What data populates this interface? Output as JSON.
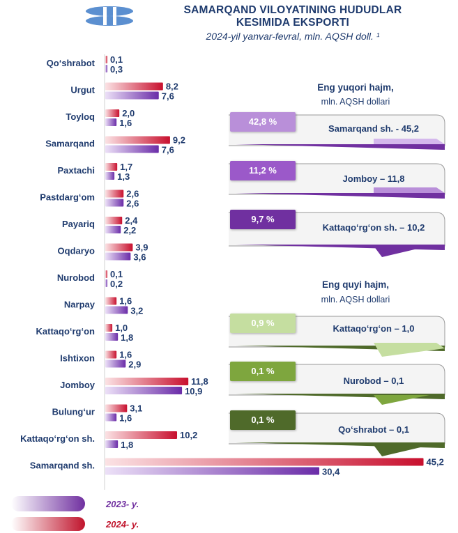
{
  "title_line1": "SAMARQAND VILOYATINING HUDUDLAR",
  "title_line2": "KESIMIDA EKSPORTI",
  "subtitle": "2024-yil yanvar-fevral, mln. AQSH doll. ¹",
  "chart_data": {
    "type": "bar",
    "orientation": "horizontal",
    "categories": [
      "Qo‘shrabot",
      "Urgut",
      "Toyloq",
      "Samarqand",
      "Paxtachi",
      "Pastdarg‘om",
      "Payariq",
      "Oqdaryo",
      "Nurobod",
      "Narpay",
      "Kattaqo‘rg‘on",
      "Ishtixon",
      "Jomboy",
      "Bulung‘ur",
      "Kattaqo‘rg‘on sh.",
      "Samarqand sh."
    ],
    "series": [
      {
        "name": "2024- y.",
        "color": "#d93c4a",
        "values": [
          0.1,
          8.2,
          2.0,
          9.2,
          1.7,
          2.6,
          2.4,
          3.9,
          0.1,
          1.6,
          1.0,
          1.6,
          11.8,
          3.1,
          10.2,
          45.2
        ],
        "labels": [
          "0,1",
          "8,2",
          "2,0",
          "9,2",
          "1,7",
          "2,6",
          "2,4",
          "3,9",
          "0,1",
          "1,6",
          "1,0",
          "1,6",
          "11,8",
          "3,1",
          "10,2",
          "45,2"
        ]
      },
      {
        "name": "2023- y.",
        "color": "#7030a0",
        "values": [
          0.3,
          7.6,
          1.6,
          7.6,
          1.3,
          2.6,
          2.2,
          3.6,
          0.2,
          3.2,
          1.8,
          2.9,
          10.9,
          1.6,
          1.8,
          30.4
        ],
        "labels": [
          "0,3",
          "7,6",
          "1,6",
          "7,6",
          "1,3",
          "2,6",
          "2,2",
          "3,6",
          "0,2",
          "3,2",
          "1,8",
          "2,9",
          "10,9",
          "1,6",
          "1,8",
          "30,4"
        ]
      }
    ],
    "legend": [
      {
        "label": "2023- y.",
        "color": "#7030a0"
      },
      {
        "label": "2024- y.",
        "color": "#c0142c"
      }
    ],
    "legend_position": "bottom-left"
  },
  "top_section": {
    "heading": "Eng yuqori hajm,",
    "unit": "mln. AQSH dollari",
    "cards": [
      {
        "pct": "42,8 %",
        "name": "Samarqand sh. - 45,2",
        "color": "#b98fd9"
      },
      {
        "pct": "11,2 %",
        "name": "Jomboy – 11,8",
        "color": "#9b59c9"
      },
      {
        "pct": "9,7 %",
        "name": "Kattaqo‘rg‘on sh. – 10,2",
        "color": "#7030a0"
      }
    ]
  },
  "bottom_section": {
    "heading": "Eng quyi hajm,",
    "unit": "mln. AQSH dollari",
    "cards": [
      {
        "pct": "0,9 %",
        "name": "Kattaqo‘rg‘on – 1,0",
        "color": "#c5dea0"
      },
      {
        "pct": "0,1 %",
        "name": "Nurobod – 0,1",
        "color": "#7ea63e"
      },
      {
        "pct": "0,1 %",
        "name": "Qo‘shrabot – 0,1",
        "color": "#4f6a2a"
      }
    ]
  }
}
